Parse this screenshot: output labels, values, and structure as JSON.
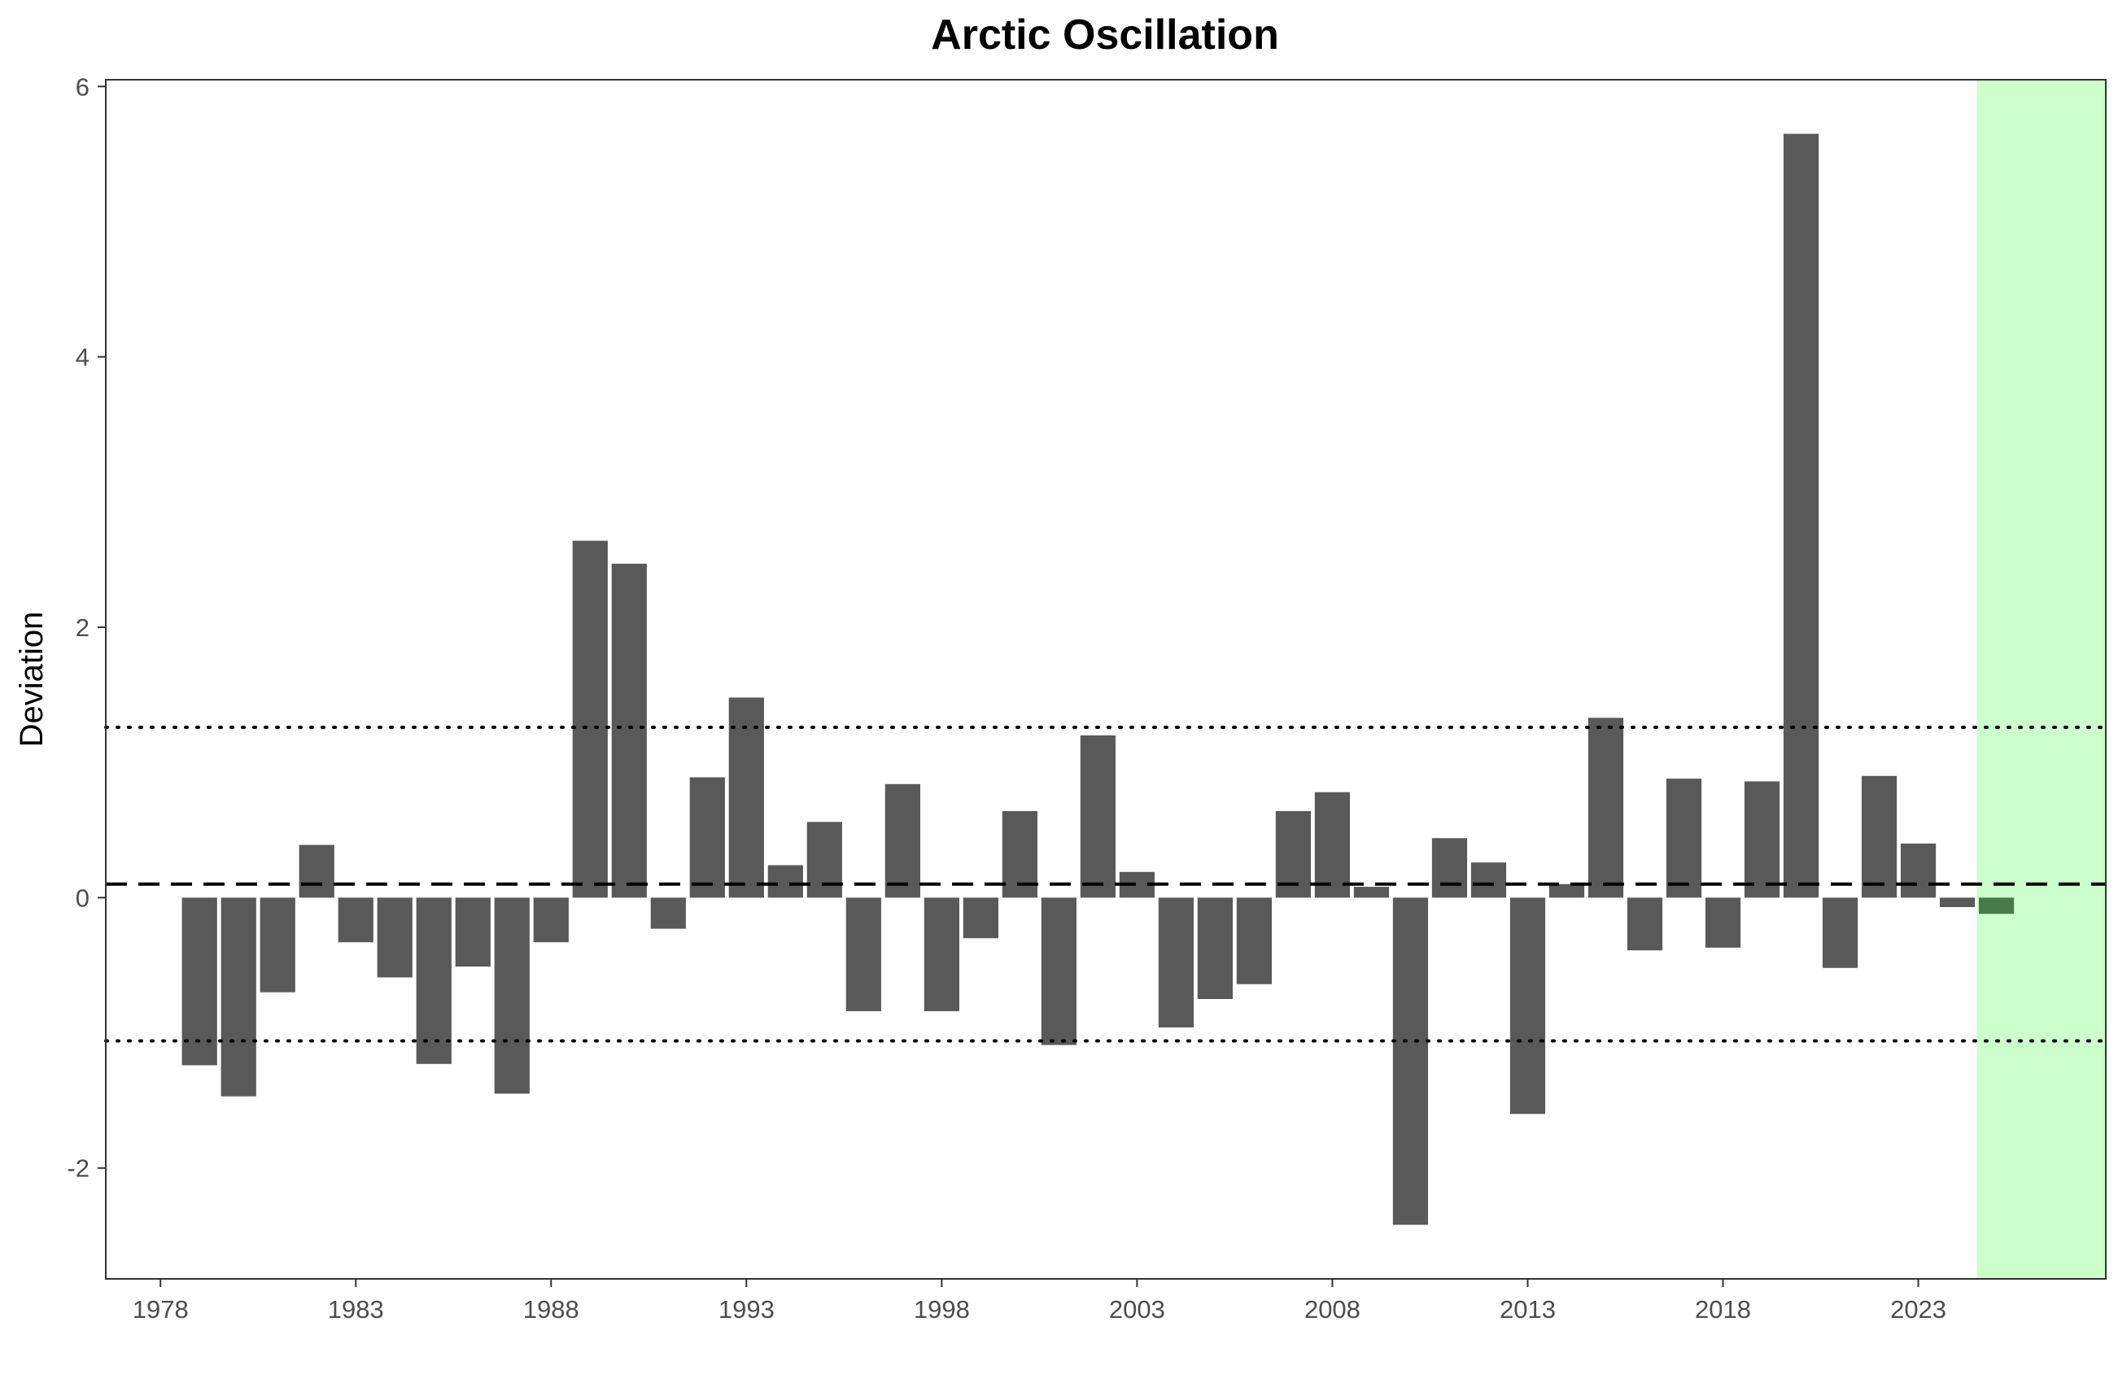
{
  "chart_data": {
    "type": "bar",
    "title": "Arctic Oscillation",
    "ylabel": "Deviation",
    "xlabel": "",
    "x": [
      1979,
      1980,
      1981,
      1982,
      1983,
      1984,
      1985,
      1986,
      1987,
      1988,
      1989,
      1990,
      1991,
      1992,
      1993,
      1994,
      1995,
      1996,
      1997,
      1998,
      1999,
      2000,
      2001,
      2002,
      2003,
      2004,
      2005,
      2006,
      2007,
      2008,
      2009,
      2010,
      2011,
      2012,
      2013,
      2014,
      2015,
      2016,
      2017,
      2018,
      2019,
      2020,
      2021,
      2022,
      2023,
      2024,
      2025
    ],
    "values": [
      -1.24,
      -1.47,
      -0.7,
      0.39,
      -0.33,
      -0.59,
      -1.23,
      -0.51,
      -1.45,
      -0.33,
      2.64,
      2.47,
      -0.23,
      0.89,
      1.48,
      0.24,
      0.56,
      -0.84,
      0.84,
      -0.84,
      -0.3,
      0.64,
      -1.09,
      1.2,
      0.19,
      -0.96,
      -0.75,
      -0.64,
      0.64,
      0.78,
      0.08,
      -2.42,
      0.44,
      0.26,
      -1.6,
      0.1,
      1.33,
      -0.39,
      0.88,
      -0.37,
      0.86,
      5.65,
      -0.52,
      0.9,
      0.4,
      -0.07,
      -0.12
    ],
    "highlight": {
      "from": 2024.5,
      "to": 2027.8,
      "color": "#ccffcc",
      "bar_color": "#477a47"
    },
    "bar_color": "#595959",
    "mean_line": 0.1,
    "upper_line": 1.26,
    "lower_line": -1.06,
    "xlim": [
      1976.6,
      2027.8
    ],
    "ylim": [
      -2.82,
      6.05
    ],
    "xticks": [
      1978,
      1983,
      1988,
      1993,
      1998,
      2003,
      2008,
      2013,
      2018,
      2023
    ],
    "xtick_labels": [
      "1978",
      "1983",
      "1988",
      "1993",
      "1998",
      "2003",
      "2008",
      "2013",
      "2018",
      "2023"
    ],
    "yticks": [
      -2,
      0,
      2,
      4,
      6
    ],
    "ytick_labels": [
      "-2",
      "0",
      "2",
      "4",
      "6"
    ],
    "grid": false,
    "legend": "none"
  }
}
